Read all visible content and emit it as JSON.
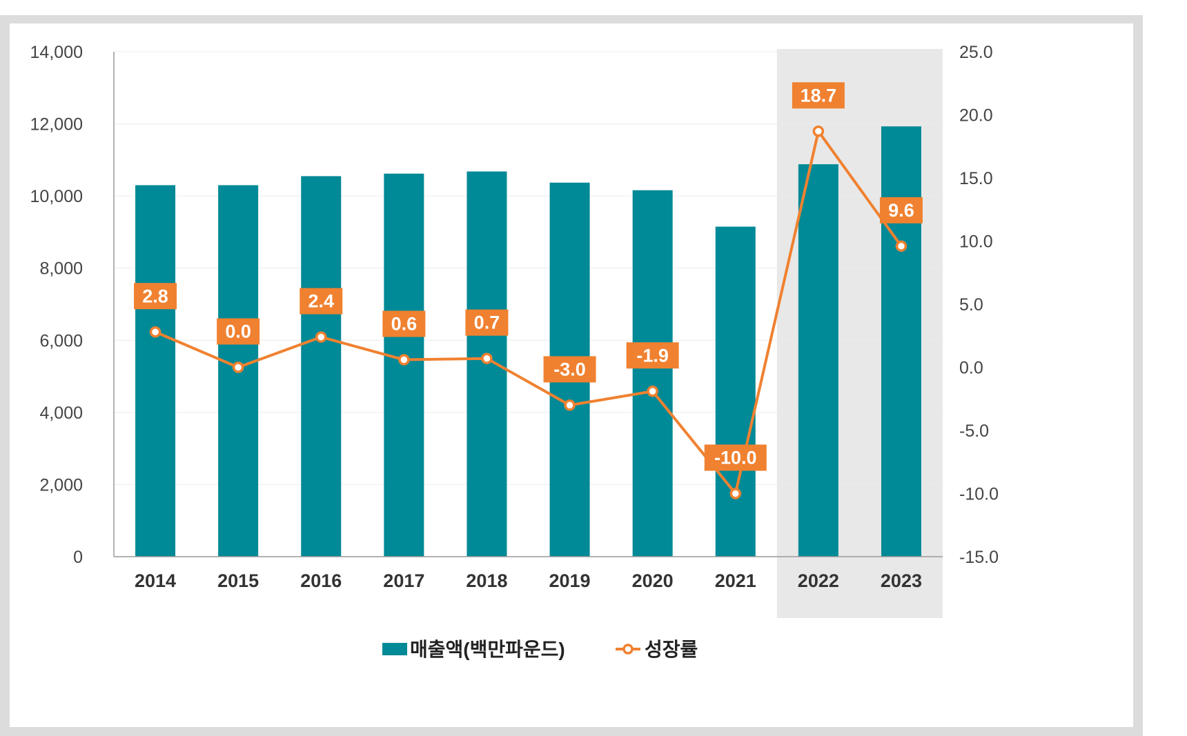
{
  "chart_data": {
    "type": "bar+line",
    "categories": [
      "2014",
      "2015",
      "2016",
      "2017",
      "2018",
      "2019",
      "2020",
      "2021",
      "2022",
      "2023"
    ],
    "series": [
      {
        "name": "매출액(백만파운드)",
        "type": "bar",
        "axis": "left",
        "values": [
          10300,
          10300,
          10550,
          10620,
          10680,
          10370,
          10160,
          9150,
          10880,
          11930
        ]
      },
      {
        "name": "성장률",
        "type": "line",
        "axis": "right",
        "values": [
          2.8,
          0.0,
          2.4,
          0.6,
          0.7,
          -3.0,
          -1.9,
          -10.0,
          18.7,
          9.6
        ],
        "labels": [
          "2.8",
          "0.0",
          "2.4",
          "0.6",
          "0.7",
          "-3.0",
          "-1.9",
          "-10.0",
          "18.7",
          "9.6"
        ]
      }
    ],
    "left_axis": {
      "min": 0,
      "max": 14000,
      "step": 2000,
      "ticks": [
        "0",
        "2,000",
        "4,000",
        "6,000",
        "8,000",
        "10,000",
        "12,000",
        "14,000"
      ]
    },
    "right_axis": {
      "min": -15,
      "max": 25,
      "step": 5,
      "ticks": [
        "-15.0",
        "-10.0",
        "-5.0",
        "0.0",
        "5.0",
        "10.0",
        "15.0",
        "20.0",
        "25.0"
      ]
    },
    "highlight_categories": [
      "2022",
      "2023"
    ],
    "legend_position": "bottom-center",
    "colors": {
      "bar": "#008996",
      "line": "#f08130",
      "highlight": "#e8e8e8",
      "grid": "#ececec",
      "axis": "#999999"
    }
  }
}
